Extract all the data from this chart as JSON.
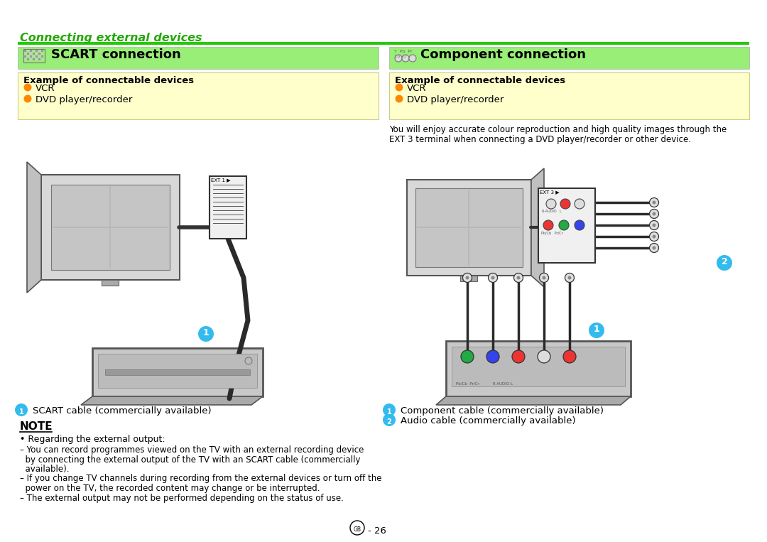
{
  "bg_color": "#ffffff",
  "light_green_bg": "#99ee77",
  "yellow_box_bg": "#ffffcc",
  "orange_bullet": "#ff8800",
  "title_green": "#22aa00",
  "bright_green": "#22cc00",
  "cyan_circle": "#33bbee",
  "page_title": "Connecting external devices",
  "section1_title": "SCART connection",
  "section2_title": "Component connection",
  "example_box_title": "Example of connectable devices",
  "scart_items": [
    "VCR",
    "DVD player/recorder"
  ],
  "component_items": [
    "VCR",
    "DVD player/recorder"
  ],
  "component_desc1": "You will enjoy accurate colour reproduction and high quality images through the",
  "component_desc2": "EXT 3 terminal when connecting a DVD player/recorder or other device.",
  "note_title": "NOTE",
  "note_bullet": "• Regarding the external output:",
  "note_lines": [
    "– You can record programmes viewed on the TV with an external recording device",
    "  by connecting the external output of the TV with an SCART cable (commercially",
    "  available).",
    "– If you change TV channels during recording from the external devices or turn off the",
    "  power on the TV, the recorded content may change or be interrupted.",
    "– The external output may not be performed depending on the status of use."
  ],
  "scart_cable_label": "SCART cable (commercially available)",
  "component_cable_label": "Component cable (commercially available)",
  "audio_cable_label": "Audio cable (commercially available)",
  "page_number": "- 26",
  "dark_gray": "#444444",
  "mid_gray": "#888888",
  "light_gray": "#cccccc",
  "tv_body": "#d5d5d5",
  "tv_screen": "#bbbbbb",
  "device_body": "#d0d0d0",
  "scart_icon_color": "#888888",
  "comp_icon_color": "#888888"
}
